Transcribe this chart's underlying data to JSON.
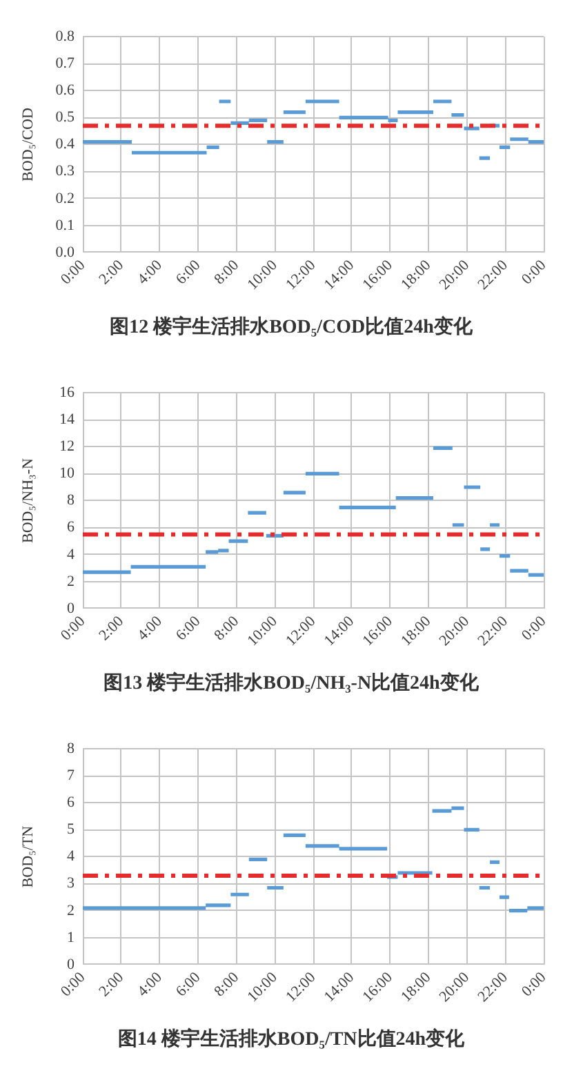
{
  "chart_data": [
    {
      "type": "line",
      "title": "图12 楼宇生活排水BOD₅/COD比值24h变化",
      "ylabel": "BOD₅/COD",
      "color": "#5b9bd5",
      "marker": "none",
      "x": [
        0,
        2.55,
        null,
        2.55,
        6.45,
        null,
        6.45,
        7.1,
        null,
        7.1,
        7.7,
        null,
        7.7,
        8.65,
        null,
        8.65,
        9.6,
        null,
        9.6,
        10.45,
        null,
        10.45,
        11.6,
        null,
        11.6,
        13.35,
        null,
        13.35,
        15.9,
        null,
        15.9,
        16.4,
        null,
        16.4,
        18.25,
        null,
        18.25,
        19.2,
        null,
        19.2,
        19.85,
        null,
        19.85,
        20.65,
        null,
        20.65,
        21.2,
        null,
        21.2,
        21.7,
        null,
        21.7,
        22.25,
        null,
        22.25,
        23.2,
        null,
        23.2,
        24
      ],
      "values": [
        0.41,
        0.41,
        null,
        0.37,
        0.37,
        null,
        0.39,
        0.39,
        null,
        0.56,
        0.56,
        null,
        0.48,
        0.48,
        null,
        0.49,
        0.49,
        null,
        0.41,
        0.41,
        null,
        0.52,
        0.52,
        null,
        0.56,
        0.56,
        null,
        0.5,
        0.5,
        null,
        0.49,
        0.49,
        null,
        0.52,
        0.52,
        null,
        0.56,
        0.56,
        null,
        0.51,
        0.51,
        null,
        0.46,
        0.46,
        null,
        0.35,
        0.35,
        null,
        0.47,
        0.47,
        null,
        0.39,
        0.39,
        null,
        0.42,
        0.42,
        null,
        0.41,
        0.41
      ],
      "xlim": [
        0,
        24
      ],
      "xticks": [
        {
          "value": 0,
          "label": "0:00"
        },
        {
          "value": 2,
          "label": "2:00"
        },
        {
          "value": 4,
          "label": "4:00"
        },
        {
          "value": 6,
          "label": "6:00"
        },
        {
          "value": 8,
          "label": "8:00"
        },
        {
          "value": 10,
          "label": "10:00"
        },
        {
          "value": 12,
          "label": "12:00"
        },
        {
          "value": 14,
          "label": "14:00"
        },
        {
          "value": 16,
          "label": "16:00"
        },
        {
          "value": 18,
          "label": "18:00"
        },
        {
          "value": 20,
          "label": "20:00"
        },
        {
          "value": 22,
          "label": "22:00"
        },
        {
          "value": 24,
          "label": "0:00"
        }
      ],
      "ylim": [
        0,
        0.8
      ],
      "yticks": [
        {
          "value": 0,
          "label": "0.0"
        },
        0.1,
        0.2,
        0.3,
        0.4,
        0.5,
        0.6,
        0.7,
        0.8
      ],
      "grid": true,
      "ref_lines": [
        {
          "axis": "y",
          "value": 0.47,
          "color": "#e52b2b",
          "line_style": "dashdot"
        }
      ]
    },
    {
      "type": "line",
      "title": "图13 楼宇生活排水BOD₅/NH₃-N比值24h变化",
      "ylabel": "BOD₅/NH₃-N",
      "color": "#5b9bd5",
      "marker": "none",
      "x": [
        0,
        2.5,
        null,
        2.5,
        6.4,
        null,
        6.4,
        7.05,
        null,
        7.05,
        7.6,
        null,
        7.6,
        8.6,
        null,
        8.6,
        9.55,
        null,
        9.55,
        10.45,
        null,
        10.45,
        11.6,
        null,
        11.6,
        13.35,
        null,
        13.35,
        16.3,
        null,
        16.3,
        18.25,
        null,
        18.25,
        19.25,
        null,
        19.25,
        19.85,
        null,
        19.85,
        20.7,
        null,
        20.7,
        21.2,
        null,
        21.2,
        21.7,
        null,
        21.7,
        22.25,
        null,
        22.25,
        23.2,
        null,
        23.2,
        24
      ],
      "values": [
        2.7,
        2.7,
        null,
        3.1,
        3.1,
        null,
        4.2,
        4.2,
        null,
        4.3,
        4.3,
        null,
        5,
        5,
        null,
        7.1,
        7.1,
        null,
        5.4,
        5.4,
        null,
        8.6,
        8.6,
        null,
        10,
        10,
        null,
        7.5,
        7.5,
        null,
        8.2,
        8.2,
        null,
        11.9,
        11.9,
        null,
        6.2,
        6.2,
        null,
        9,
        9,
        null,
        4.4,
        4.4,
        null,
        6.2,
        6.2,
        null,
        3.9,
        3.9,
        null,
        2.8,
        2.8,
        null,
        2.5,
        2.5
      ],
      "xlim": [
        0,
        24
      ],
      "xticks": [
        {
          "value": 0,
          "label": "0:00"
        },
        {
          "value": 2,
          "label": "2:00"
        },
        {
          "value": 4,
          "label": "4:00"
        },
        {
          "value": 6,
          "label": "6:00"
        },
        {
          "value": 8,
          "label": "8:00"
        },
        {
          "value": 10,
          "label": "10:00"
        },
        {
          "value": 12,
          "label": "12:00"
        },
        {
          "value": 14,
          "label": "14:00"
        },
        {
          "value": 16,
          "label": "16:00"
        },
        {
          "value": 18,
          "label": "18:00"
        },
        {
          "value": 20,
          "label": "20:00"
        },
        {
          "value": 22,
          "label": "22:00"
        },
        {
          "value": 24,
          "label": "0:00"
        }
      ],
      "ylim": [
        0,
        16
      ],
      "yticks": [
        0,
        2,
        4,
        6,
        8,
        10,
        12,
        14,
        16
      ],
      "grid": true,
      "ref_lines": [
        {
          "axis": "y",
          "value": 5.5,
          "color": "#e52b2b",
          "line_style": "dashdot"
        }
      ]
    },
    {
      "type": "line",
      "title": "图14 楼宇生活排水BOD₅/TN比值24h变化",
      "ylabel": "BOD₅/TN",
      "color": "#5b9bd5",
      "marker": "none",
      "x": [
        0,
        6.4,
        null,
        6.4,
        7.7,
        null,
        7.7,
        8.65,
        null,
        8.65,
        9.6,
        null,
        9.6,
        10.45,
        null,
        10.45,
        11.6,
        null,
        11.6,
        13.35,
        null,
        13.35,
        15.85,
        null,
        15.85,
        16.4,
        null,
        16.4,
        18.2,
        null,
        18.2,
        19.2,
        null,
        19.2,
        19.85,
        null,
        19.85,
        20.65,
        null,
        20.65,
        21.2,
        null,
        21.2,
        21.7,
        null,
        21.7,
        22.2,
        null,
        22.2,
        23.15,
        null,
        23.15,
        24
      ],
      "values": [
        2.1,
        2.1,
        null,
        2.2,
        2.2,
        null,
        2.6,
        2.6,
        null,
        3.9,
        3.9,
        null,
        2.85,
        2.85,
        null,
        4.8,
        4.8,
        null,
        4.4,
        4.4,
        null,
        4.3,
        4.3,
        null,
        3.25,
        3.25,
        null,
        3.4,
        3.4,
        null,
        5.7,
        5.7,
        null,
        5.8,
        5.8,
        null,
        5,
        5,
        null,
        2.85,
        2.85,
        null,
        3.8,
        3.8,
        null,
        2.5,
        2.5,
        null,
        2,
        2,
        null,
        2.1,
        2.1
      ],
      "xlim": [
        0,
        24
      ],
      "xticks": [
        {
          "value": 0,
          "label": "0:00"
        },
        {
          "value": 2,
          "label": "2:00"
        },
        {
          "value": 4,
          "label": "4:00"
        },
        {
          "value": 6,
          "label": "6:00"
        },
        {
          "value": 8,
          "label": "8:00"
        },
        {
          "value": 10,
          "label": "10:00"
        },
        {
          "value": 12,
          "label": "12:00"
        },
        {
          "value": 14,
          "label": "14:00"
        },
        {
          "value": 16,
          "label": "16:00"
        },
        {
          "value": 18,
          "label": "18:00"
        },
        {
          "value": 20,
          "label": "20:00"
        },
        {
          "value": 22,
          "label": "22:00"
        },
        {
          "value": 24,
          "label": "0:00"
        }
      ],
      "ylim": [
        0,
        8
      ],
      "yticks": [
        0,
        1,
        2,
        3,
        4,
        5,
        6,
        7,
        8
      ],
      "grid": true,
      "ref_lines": [
        {
          "axis": "y",
          "value": 3.3,
          "color": "#e52b2b",
          "line_style": "dashdot"
        }
      ]
    }
  ]
}
